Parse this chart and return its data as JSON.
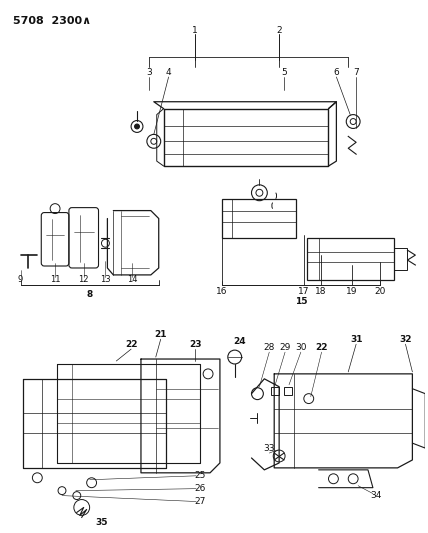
{
  "bg_color": "#ffffff",
  "line_color": "#1a1a1a",
  "text_color": "#111111",
  "fig_width": 4.28,
  "fig_height": 5.33,
  "dpi": 100,
  "header": "5708  2300∧"
}
